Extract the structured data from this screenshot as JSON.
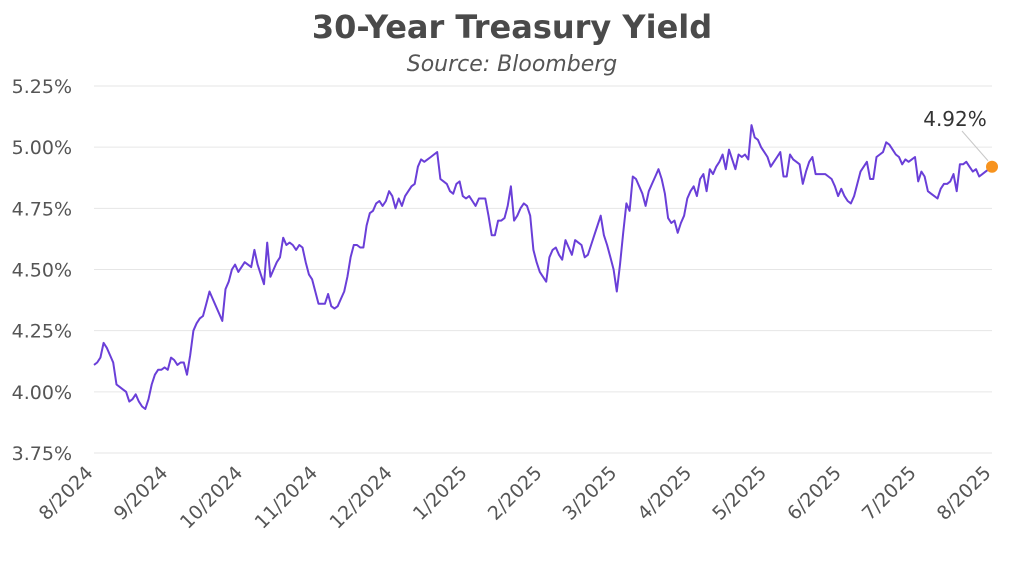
{
  "chart_data": {
    "type": "line",
    "title": "30-Year Treasury Yield",
    "subtitle": "Source: Bloomberg",
    "xlabel": "",
    "ylabel": "",
    "ylim": [
      3.75,
      5.25
    ],
    "yticks": [
      "3.75%",
      "4.00%",
      "4.25%",
      "4.50%",
      "4.75%",
      "5.00%",
      "5.25%"
    ],
    "ytick_values": [
      3.75,
      4.0,
      4.25,
      4.5,
      4.75,
      5.0,
      5.25
    ],
    "xticks": [
      "8/2024",
      "9/2024",
      "10/2024",
      "11/2024",
      "12/2024",
      "1/2025",
      "2/2025",
      "3/2025",
      "4/2025",
      "5/2025",
      "6/2025",
      "7/2025",
      "8/2025"
    ],
    "grid": true,
    "line_color": "#6a3fd8",
    "marker_color": "#f7931e",
    "end_label": "4.92%",
    "series": [
      {
        "values": [
          4.11,
          4.12,
          4.14,
          4.2,
          4.18,
          4.15,
          4.12,
          4.03,
          4.02,
          4.01,
          4.0,
          3.96,
          3.97,
          3.99,
          3.96,
          3.94,
          3.93,
          3.97,
          4.03,
          4.07,
          4.09,
          4.09,
          4.1,
          4.09,
          4.14,
          4.13,
          4.11,
          4.12,
          4.12,
          4.07,
          4.15,
          4.25,
          4.28,
          4.3,
          4.31,
          4.36,
          4.41,
          4.38,
          4.35,
          4.32,
          4.29,
          4.42,
          4.45,
          4.5,
          4.52,
          4.49,
          4.51,
          4.53,
          4.52,
          4.51,
          4.58,
          4.52,
          4.48,
          4.44,
          4.61,
          4.47,
          4.5,
          4.53,
          4.55,
          4.63,
          4.6,
          4.61,
          4.6,
          4.58,
          4.6,
          4.59,
          4.53,
          4.48,
          4.46,
          4.41,
          4.36,
          4.36,
          4.36,
          4.4,
          4.35,
          4.34,
          4.35,
          4.38,
          4.41,
          4.47,
          4.55,
          4.6,
          4.6,
          4.59,
          4.59,
          4.68,
          4.73,
          4.74,
          4.77,
          4.78,
          4.76,
          4.78,
          4.82,
          4.8,
          4.75,
          4.79,
          4.76,
          4.8,
          4.82,
          4.84,
          4.85,
          4.92,
          4.95,
          4.94,
          4.95,
          4.96,
          4.97,
          4.98,
          4.87,
          4.86,
          4.85,
          4.82,
          4.81,
          4.85,
          4.86,
          4.8,
          4.79,
          4.8,
          4.78,
          4.76,
          4.79,
          4.79,
          4.79,
          4.72,
          4.64,
          4.64,
          4.7,
          4.7,
          4.71,
          4.76,
          4.84,
          4.7,
          4.72,
          4.75,
          4.77,
          4.76,
          4.72,
          4.58,
          4.53,
          4.49,
          4.47,
          4.45,
          4.55,
          4.58,
          4.59,
          4.56,
          4.54,
          4.62,
          4.59,
          4.56,
          4.62,
          4.61,
          4.6,
          4.55,
          4.56,
          4.6,
          4.64,
          4.68,
          4.72,
          4.64,
          4.6,
          4.55,
          4.5,
          4.41,
          4.52,
          4.65,
          4.77,
          4.74,
          4.88,
          4.87,
          4.84,
          4.81,
          4.76,
          4.82,
          4.85,
          4.88,
          4.91,
          4.87,
          4.81,
          4.71,
          4.69,
          4.7,
          4.65,
          4.69,
          4.72,
          4.79,
          4.82,
          4.84,
          4.8,
          4.87,
          4.89,
          4.82,
          4.91,
          4.89,
          4.92,
          4.94,
          4.97,
          4.91,
          4.99,
          4.95,
          4.91,
          4.97,
          4.96,
          4.97,
          4.95,
          5.09,
          5.04,
          5.03,
          5.0,
          4.98,
          4.96,
          4.92,
          4.94,
          4.96,
          4.98,
          4.88,
          4.88,
          4.97,
          4.95,
          4.94,
          4.93,
          4.85,
          4.9,
          4.94,
          4.96,
          4.89,
          4.89,
          4.89,
          4.89,
          4.88,
          4.87,
          4.84,
          4.8,
          4.83,
          4.8,
          4.78,
          4.77,
          4.8,
          4.85,
          4.9,
          4.92,
          4.94,
          4.87,
          4.87,
          4.96,
          4.97,
          4.98,
          5.02,
          5.01,
          4.99,
          4.97,
          4.96,
          4.93,
          4.95,
          4.94,
          4.95,
          4.96,
          4.86,
          4.9,
          4.88,
          4.82,
          4.81,
          4.8,
          4.79,
          4.83,
          4.85,
          4.85,
          4.86,
          4.89,
          4.82,
          4.93,
          4.93,
          4.94,
          4.92,
          4.9,
          4.91,
          4.88,
          4.89,
          4.9,
          4.91,
          4.92
        ]
      }
    ]
  }
}
